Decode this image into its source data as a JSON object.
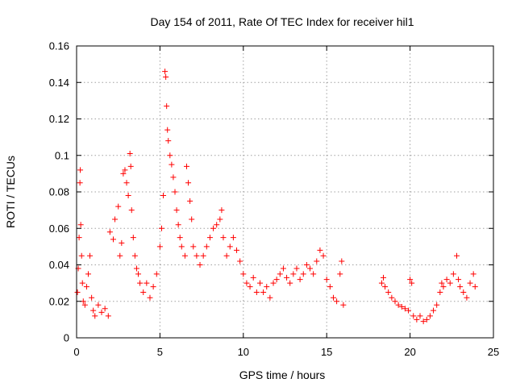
{
  "chart_data": {
    "type": "scatter",
    "title": "Day 154 of 2011, Rate Of TEC Index for receiver hil1",
    "xlabel": "GPS time / hours",
    "ylabel": "ROTI / TECUs",
    "xlim": [
      0,
      25
    ],
    "ylim": [
      0,
      0.16
    ],
    "xticks": [
      0,
      5,
      10,
      15,
      20,
      25
    ],
    "yticks": [
      0,
      0.02,
      0.04,
      0.06,
      0.08,
      0.1,
      0.12,
      0.14,
      0.16
    ],
    "xtick_labels": [
      "0",
      "5",
      "10",
      "15",
      "20",
      "25"
    ],
    "ytick_labels": [
      "0",
      "0.02",
      "0.04",
      "0.06",
      "0.08",
      "0.1",
      "0.12",
      "0.14",
      "0.16"
    ],
    "grid": true,
    "marker": "+",
    "color": "#ff0000",
    "data_gap_hours": [
      16.0,
      18.3
    ],
    "series": [
      {
        "name": "ROTI",
        "points": [
          [
            0.05,
            0.025
          ],
          [
            0.1,
            0.038
          ],
          [
            0.15,
            0.055
          ],
          [
            0.2,
            0.085
          ],
          [
            0.22,
            0.092
          ],
          [
            0.25,
            0.062
          ],
          [
            0.3,
            0.045
          ],
          [
            0.35,
            0.03
          ],
          [
            0.4,
            0.02
          ],
          [
            0.5,
            0.018
          ],
          [
            0.6,
            0.028
          ],
          [
            0.7,
            0.035
          ],
          [
            0.8,
            0.045
          ],
          [
            0.9,
            0.022
          ],
          [
            1.0,
            0.015
          ],
          [
            1.1,
            0.012
          ],
          [
            1.3,
            0.018
          ],
          [
            1.5,
            0.014
          ],
          [
            1.7,
            0.016
          ],
          [
            1.9,
            0.012
          ],
          [
            2.0,
            0.058
          ],
          [
            2.2,
            0.054
          ],
          [
            2.3,
            0.065
          ],
          [
            2.5,
            0.072
          ],
          [
            2.6,
            0.045
          ],
          [
            2.7,
            0.052
          ],
          [
            2.8,
            0.09
          ],
          [
            2.9,
            0.092
          ],
          [
            3.0,
            0.085
          ],
          [
            3.1,
            0.078
          ],
          [
            3.2,
            0.101
          ],
          [
            3.25,
            0.094
          ],
          [
            3.3,
            0.07
          ],
          [
            3.4,
            0.055
          ],
          [
            3.5,
            0.045
          ],
          [
            3.6,
            0.038
          ],
          [
            3.7,
            0.035
          ],
          [
            3.8,
            0.03
          ],
          [
            4.0,
            0.025
          ],
          [
            4.2,
            0.03
          ],
          [
            4.4,
            0.022
          ],
          [
            4.6,
            0.028
          ],
          [
            4.8,
            0.035
          ],
          [
            5.0,
            0.05
          ],
          [
            5.1,
            0.06
          ],
          [
            5.2,
            0.078
          ],
          [
            5.3,
            0.146
          ],
          [
            5.35,
            0.143
          ],
          [
            5.4,
            0.127
          ],
          [
            5.45,
            0.114
          ],
          [
            5.5,
            0.108
          ],
          [
            5.6,
            0.1
          ],
          [
            5.7,
            0.095
          ],
          [
            5.8,
            0.088
          ],
          [
            5.9,
            0.08
          ],
          [
            6.0,
            0.07
          ],
          [
            6.1,
            0.062
          ],
          [
            6.2,
            0.055
          ],
          [
            6.3,
            0.05
          ],
          [
            6.5,
            0.045
          ],
          [
            6.6,
            0.094
          ],
          [
            6.7,
            0.085
          ],
          [
            6.8,
            0.075
          ],
          [
            6.9,
            0.065
          ],
          [
            7.0,
            0.05
          ],
          [
            7.2,
            0.045
          ],
          [
            7.4,
            0.04
          ],
          [
            7.6,
            0.045
          ],
          [
            7.8,
            0.05
          ],
          [
            8.0,
            0.055
          ],
          [
            8.2,
            0.06
          ],
          [
            8.4,
            0.062
          ],
          [
            8.6,
            0.065
          ],
          [
            8.7,
            0.07
          ],
          [
            8.8,
            0.055
          ],
          [
            9.0,
            0.045
          ],
          [
            9.2,
            0.05
          ],
          [
            9.4,
            0.055
          ],
          [
            9.6,
            0.048
          ],
          [
            9.8,
            0.042
          ],
          [
            10.0,
            0.035
          ],
          [
            10.2,
            0.03
          ],
          [
            10.4,
            0.028
          ],
          [
            10.6,
            0.033
          ],
          [
            10.8,
            0.025
          ],
          [
            11.0,
            0.03
          ],
          [
            11.2,
            0.025
          ],
          [
            11.4,
            0.028
          ],
          [
            11.6,
            0.022
          ],
          [
            11.8,
            0.03
          ],
          [
            12.0,
            0.032
          ],
          [
            12.2,
            0.035
          ],
          [
            12.4,
            0.038
          ],
          [
            12.6,
            0.033
          ],
          [
            12.8,
            0.03
          ],
          [
            13.0,
            0.035
          ],
          [
            13.2,
            0.038
          ],
          [
            13.4,
            0.032
          ],
          [
            13.6,
            0.035
          ],
          [
            13.8,
            0.04
          ],
          [
            14.0,
            0.038
          ],
          [
            14.2,
            0.035
          ],
          [
            14.4,
            0.042
          ],
          [
            14.6,
            0.048
          ],
          [
            14.8,
            0.045
          ],
          [
            15.0,
            0.032
          ],
          [
            15.2,
            0.028
          ],
          [
            15.4,
            0.022
          ],
          [
            15.6,
            0.02
          ],
          [
            15.8,
            0.035
          ],
          [
            15.9,
            0.042
          ],
          [
            16.0,
            0.018
          ],
          [
            18.3,
            0.03
          ],
          [
            18.4,
            0.033
          ],
          [
            18.5,
            0.028
          ],
          [
            18.7,
            0.025
          ],
          [
            18.9,
            0.022
          ],
          [
            19.1,
            0.02
          ],
          [
            19.3,
            0.018
          ],
          [
            19.5,
            0.017
          ],
          [
            19.7,
            0.016
          ],
          [
            19.9,
            0.015
          ],
          [
            20.0,
            0.032
          ],
          [
            20.1,
            0.03
          ],
          [
            20.2,
            0.012
          ],
          [
            20.4,
            0.01
          ],
          [
            20.6,
            0.012
          ],
          [
            20.8,
            0.009
          ],
          [
            21.0,
            0.01
          ],
          [
            21.2,
            0.012
          ],
          [
            21.4,
            0.015
          ],
          [
            21.6,
            0.018
          ],
          [
            21.8,
            0.025
          ],
          [
            21.9,
            0.03
          ],
          [
            22.0,
            0.028
          ],
          [
            22.2,
            0.032
          ],
          [
            22.4,
            0.03
          ],
          [
            22.6,
            0.035
          ],
          [
            22.8,
            0.045
          ],
          [
            22.9,
            0.032
          ],
          [
            23.0,
            0.028
          ],
          [
            23.2,
            0.025
          ],
          [
            23.4,
            0.022
          ],
          [
            23.6,
            0.03
          ],
          [
            23.8,
            0.035
          ],
          [
            23.9,
            0.028
          ]
        ]
      }
    ]
  }
}
